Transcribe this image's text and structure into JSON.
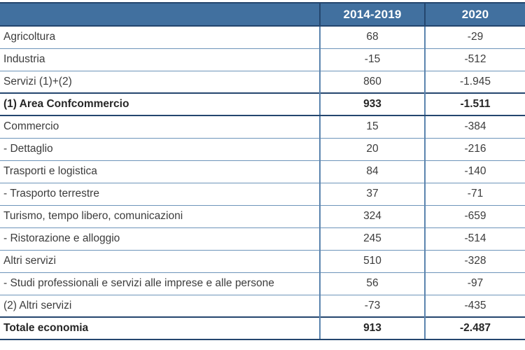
{
  "table": {
    "columns": [
      "",
      "2014-2019",
      "2020"
    ],
    "rows": [
      {
        "label": "Agricoltura",
        "values": [
          "68",
          "-29"
        ],
        "bold": false
      },
      {
        "label": "Industria",
        "values": [
          "-15",
          "-512"
        ],
        "bold": false
      },
      {
        "label": "Servizi (1)+(2)",
        "values": [
          "860",
          "-1.945"
        ],
        "bold": false
      },
      {
        "label": "(1) Area Confcommercio",
        "values": [
          "933",
          "-1.511"
        ],
        "bold": true
      },
      {
        "label": "Commercio",
        "values": [
          "15",
          "-384"
        ],
        "bold": false
      },
      {
        "label": "- Dettaglio",
        "values": [
          "20",
          "-216"
        ],
        "bold": false
      },
      {
        "label": "Trasporti e logistica",
        "values": [
          "84",
          "-140"
        ],
        "bold": false
      },
      {
        "label": "- Trasporto terrestre",
        "values": [
          "37",
          "-71"
        ],
        "bold": false
      },
      {
        "label": "Turismo, tempo libero, comunicazioni",
        "values": [
          "324",
          "-659"
        ],
        "bold": false
      },
      {
        "label": "- Ristorazione e alloggio",
        "values": [
          "245",
          "-514"
        ],
        "bold": false
      },
      {
        "label": "Altri servizi",
        "values": [
          "510",
          "-328"
        ],
        "bold": false
      },
      {
        "label": "- Studi professionali e servizi alle imprese e alle persone",
        "values": [
          "56",
          "-97"
        ],
        "bold": false
      },
      {
        "label": "(2) Altri servizi",
        "values": [
          "-73",
          "-435"
        ],
        "bold": false
      },
      {
        "label": "Totale economia",
        "values": [
          "913",
          "-2.487"
        ],
        "bold": true
      }
    ]
  },
  "colors": {
    "header_bg": "#41709F",
    "header_text": "#FFFFFF",
    "dark_border": "#24466E",
    "thin_border": "#6D94BA",
    "vert_border": "#5B84AE",
    "text": "#3C3C3C",
    "bold_text": "#262626"
  }
}
